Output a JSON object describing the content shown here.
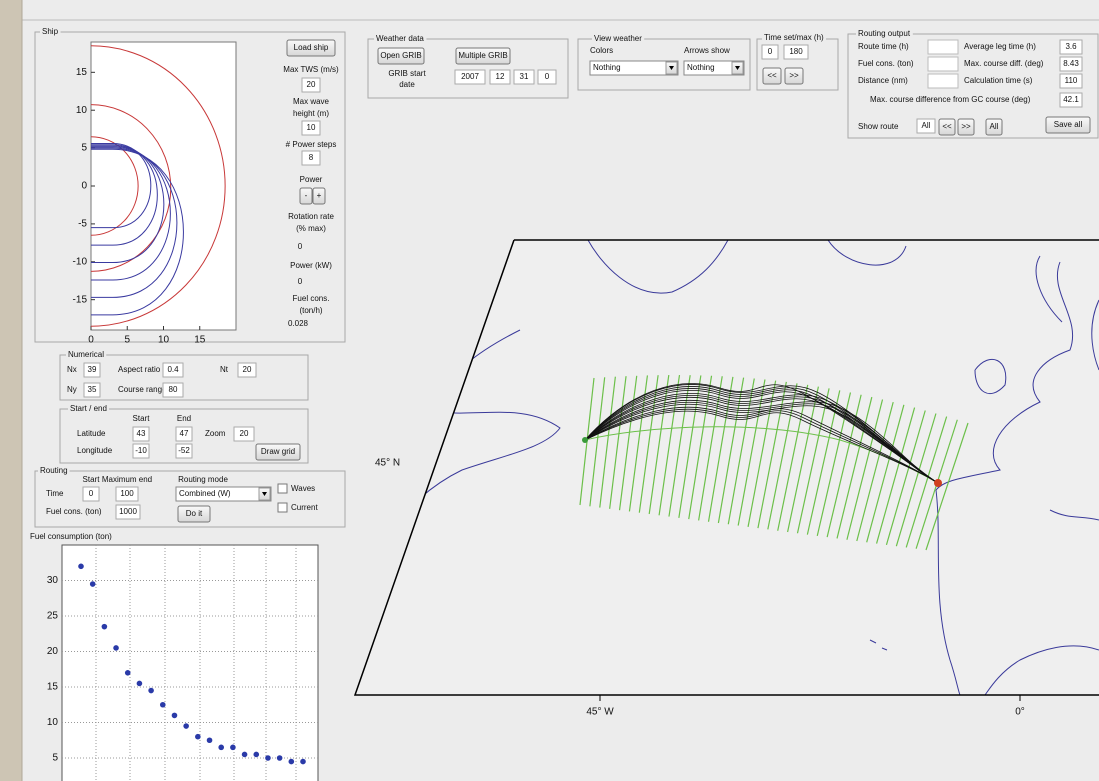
{
  "ship_panel": {
    "title": "Ship",
    "load_button": "Load ship",
    "max_tws_label": "Max TWS (m/s)",
    "max_tws": "20",
    "max_wave_label_1": "Max wave",
    "max_wave_label_2": "height (m)",
    "max_wave": "10",
    "power_steps_label": "# Power steps",
    "power_steps": "8",
    "power_label": "Power",
    "minus": "-",
    "plus": "+",
    "rotation_label_1": "Rotation rate",
    "rotation_label_2": "(% max)",
    "rotation": "0",
    "power_kw_label": "Power (kW)",
    "power_kw": "0",
    "fuel_label_1": "Fuel cons.",
    "fuel_label_2": "(ton/h)",
    "fuel": "0.028",
    "plot": {
      "xlim": [
        0,
        20
      ],
      "ylim": [
        -19,
        19
      ],
      "xticks": [
        0,
        5,
        10,
        15
      ],
      "yticks": [
        -15,
        -10,
        -5,
        0,
        5,
        10,
        15
      ]
    }
  },
  "numerical": {
    "title": "Numerical",
    "nx_label": "Nx",
    "nx": "39",
    "aspect_label": "Aspect ratio",
    "aspect": "0.4",
    "nt_label": "Nt",
    "nt": "20",
    "ny_label": "Ny",
    "ny": "35",
    "course_label": "Course range",
    "course": "80"
  },
  "start_end": {
    "title": "Start / end",
    "start": "Start",
    "end": "End",
    "lat_label": "Latitude",
    "lat_start": "43",
    "lat_end": "47",
    "zoom_label": "Zoom",
    "zoom": "20",
    "lon_label": "Longitude",
    "lon_start": "-10",
    "lon_end": "-52",
    "draw_grid": "Draw grid"
  },
  "routing": {
    "title": "Routing",
    "start": "Start",
    "max_end": "Maximum end",
    "mode_label": "Routing mode",
    "time_label": "Time",
    "time_start": "0",
    "time_end": "100",
    "mode": "Combined (W)",
    "waves": "Waves",
    "fuel_label": "Fuel cons. (ton)",
    "fuel": "1000",
    "current": "Current",
    "do_it": "Do it"
  },
  "weather": {
    "title": "Weather data",
    "open": "Open GRIB",
    "multiple": "Multiple GRIB",
    "start_label_1": "GRIB start",
    "start_label_2": "date",
    "year": "2007",
    "month": "12",
    "day": "31",
    "hour": "0"
  },
  "view_weather": {
    "title": "View weather",
    "colors_label": "Colors",
    "arrows_label": "Arrows show",
    "colors": "Nothing",
    "arrows": "Nothing"
  },
  "time": {
    "title": "Time set/max (h)",
    "set": "0",
    "max": "180",
    "back": "<<",
    "forward": ">>"
  },
  "output": {
    "title": "Routing output",
    "route_time_label": "Route time (h)",
    "avg_leg_label": "Average leg time (h)",
    "avg_leg": "3.6",
    "fuel_label": "Fuel cons. (ton)",
    "max_course_label": "Max. course diff. (deg)",
    "max_course": "8.43",
    "distance_label": "Distance (nm)",
    "calc_label": "Calculation time (s)",
    "calc": "110",
    "gc_label": "Max. course difference from GC course (deg)",
    "gc": "42.1",
    "show_label": "Show route",
    "show_value": "All",
    "prev": "<<",
    "next": ">>",
    "all": "All",
    "save": "Save all"
  },
  "map": {
    "lat_label": "45° N",
    "lon_label": "45° W",
    "zero_label": "0°"
  },
  "chart_data": {
    "type": "scatter",
    "title": "Fuel consumption (ton)",
    "values": [
      32,
      29.5,
      23.5,
      20.5,
      17,
      15.5,
      14.5,
      12.5,
      11,
      9.5,
      8,
      7.5,
      6.5,
      6.5,
      5.5,
      5.5,
      5,
      5,
      4.5,
      4.5
    ],
    "color": "#2a3aa8",
    "ylim": [
      0,
      35
    ],
    "yticks": [
      5,
      10,
      15,
      20,
      25,
      30
    ],
    "grid": true
  }
}
